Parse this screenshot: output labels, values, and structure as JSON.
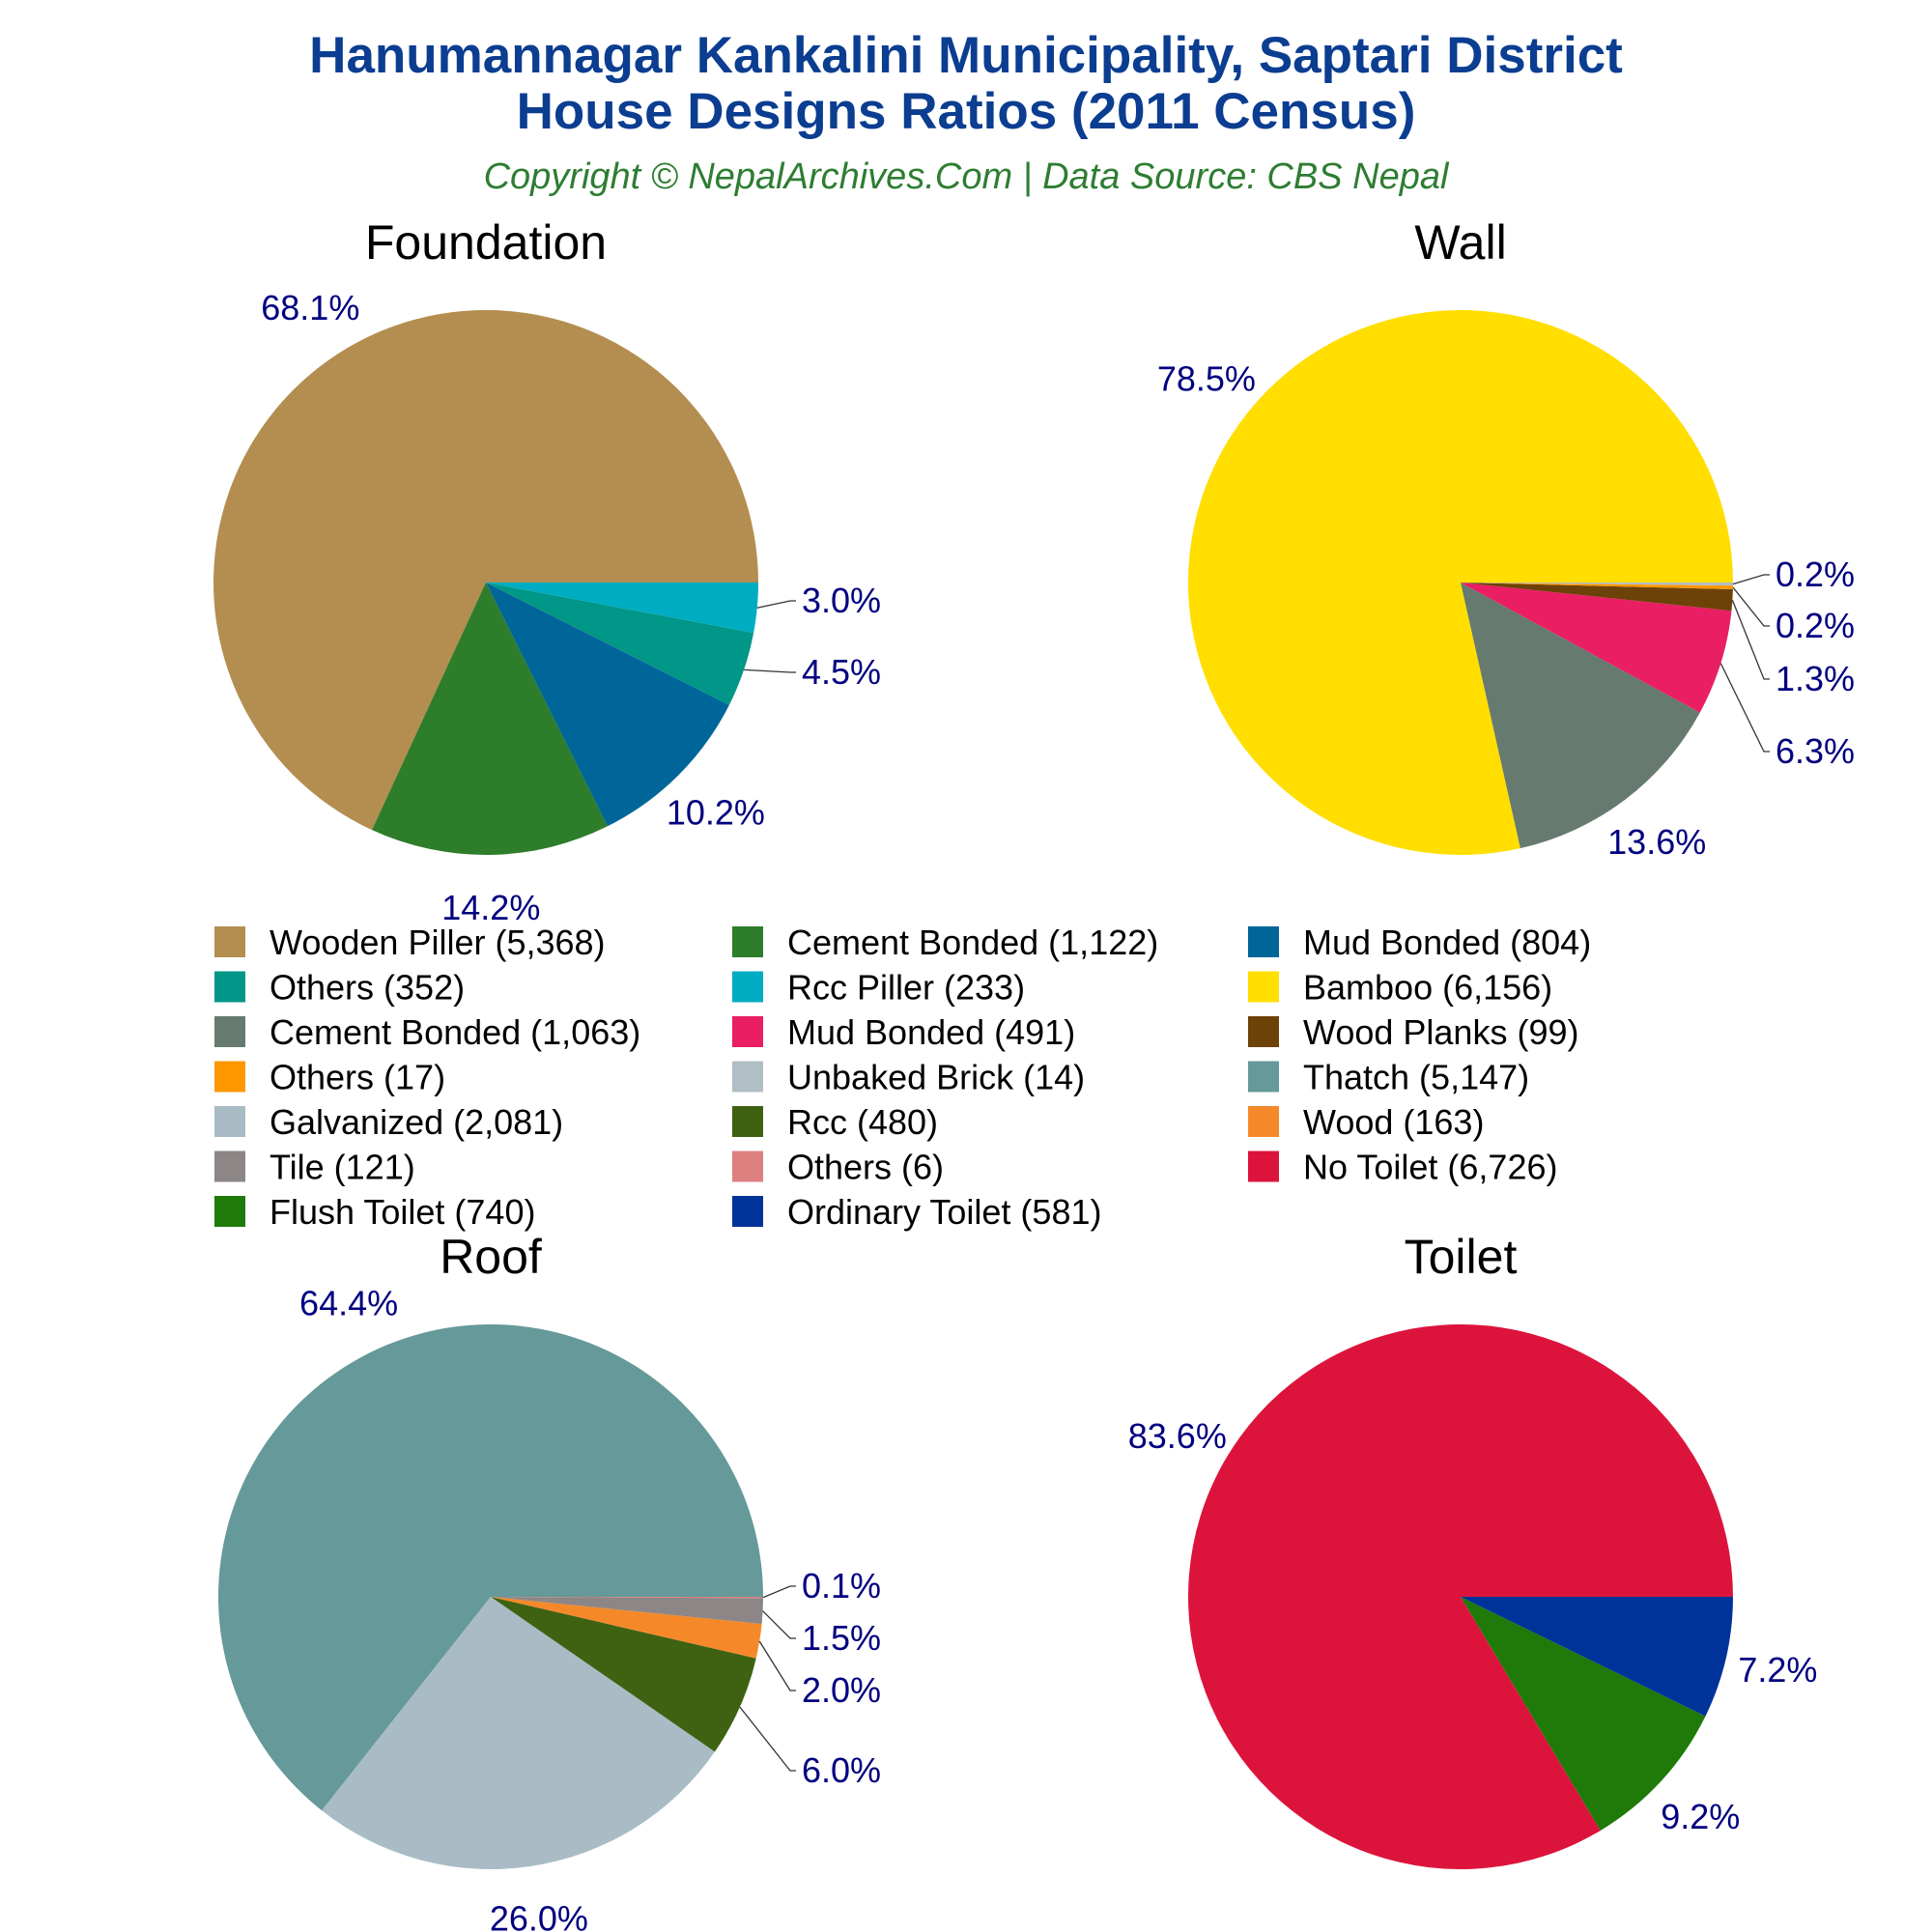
{
  "header": {
    "title_line1": "Hanumannagar Kankalini Municipality, Saptari District",
    "title_line2": "House Designs Ratios (2011 Census)",
    "subtitle": "Copyright © NepalArchives.Com | Data Source: CBS Nepal"
  },
  "chart_data": [
    {
      "type": "pie",
      "title": "Foundation",
      "slices": [
        {
          "label": "Wooden Piller (5,368)",
          "value": 5368,
          "pct": "68.1%",
          "color": "#b38e50"
        },
        {
          "label": "Cement Bonded (1,122)",
          "value": 1122,
          "pct": "14.2%",
          "color": "#2e7d2a"
        },
        {
          "label": "Mud Bonded (804)",
          "value": 804,
          "pct": "10.2%",
          "color": "#006699"
        },
        {
          "label": "Others (352)",
          "value": 352,
          "pct": "4.5%",
          "color": "#009688"
        },
        {
          "label": "Rcc Piller (233)",
          "value": 233,
          "pct": "3.0%",
          "color": "#00acc1"
        }
      ]
    },
    {
      "type": "pie",
      "title": "Wall",
      "slices": [
        {
          "label": "Bamboo (6,156)",
          "value": 6156,
          "pct": "78.5%",
          "color": "#ffde00"
        },
        {
          "label": "Cement Bonded (1,063)",
          "value": 1063,
          "pct": "13.6%",
          "color": "#667a70"
        },
        {
          "label": "Mud Bonded (491)",
          "value": 491,
          "pct": "6.3%",
          "color": "#e91e63"
        },
        {
          "label": "Wood Planks (99)",
          "value": 99,
          "pct": "1.3%",
          "color": "#6d4208"
        },
        {
          "label": "Others (17)",
          "value": 17,
          "pct": "0.2%",
          "color": "#ff9800"
        },
        {
          "label": "Unbaked Brick (14)",
          "value": 14,
          "pct": "0.2%",
          "color": "#b0bec5"
        }
      ]
    },
    {
      "type": "pie",
      "title": "Roof",
      "slices": [
        {
          "label": "Thatch (5,147)",
          "value": 5147,
          "pct": "64.4%",
          "color": "#669999"
        },
        {
          "label": "Galvanized (2,081)",
          "value": 2081,
          "pct": "26.0%",
          "color": "#a9bcc5"
        },
        {
          "label": "Rcc (480)",
          "value": 480,
          "pct": "6.0%",
          "color": "#3f6212"
        },
        {
          "label": "Wood (163)",
          "value": 163,
          "pct": "2.0%",
          "color": "#f5892a"
        },
        {
          "label": "Tile (121)",
          "value": 121,
          "pct": "1.5%",
          "color": "#8c8686"
        },
        {
          "label": "Others (6)",
          "value": 6,
          "pct": "0.1%",
          "color": "#dd8080"
        }
      ]
    },
    {
      "type": "pie",
      "title": "Toilet",
      "slices": [
        {
          "label": "No Toilet (6,726)",
          "value": 6726,
          "pct": "83.6%",
          "color": "#dc143c"
        },
        {
          "label": "Flush Toilet (740)",
          "value": 740,
          "pct": "9.2%",
          "color": "#1f7a0a"
        },
        {
          "label": "Ordinary Toilet (581)",
          "value": 581,
          "pct": "7.2%",
          "color": "#003399"
        }
      ]
    }
  ],
  "legend": [
    {
      "label": "Wooden Piller (5,368)",
      "color": "#b38e50"
    },
    {
      "label": "Cement Bonded (1,122)",
      "color": "#2e7d2a"
    },
    {
      "label": "Mud Bonded (804)",
      "color": "#006699"
    },
    {
      "label": "Others (352)",
      "color": "#009688"
    },
    {
      "label": "Rcc Piller (233)",
      "color": "#00acc1"
    },
    {
      "label": "Bamboo (6,156)",
      "color": "#ffde00"
    },
    {
      "label": "Cement Bonded (1,063)",
      "color": "#667a70"
    },
    {
      "label": "Mud Bonded (491)",
      "color": "#e91e63"
    },
    {
      "label": "Wood Planks (99)",
      "color": "#6d4208"
    },
    {
      "label": "Others (17)",
      "color": "#ff9800"
    },
    {
      "label": "Unbaked Brick (14)",
      "color": "#b0bec5"
    },
    {
      "label": "Thatch (5,147)",
      "color": "#669999"
    },
    {
      "label": "Galvanized (2,081)",
      "color": "#a9bcc5"
    },
    {
      "label": "Rcc (480)",
      "color": "#3f6212"
    },
    {
      "label": "Wood (163)",
      "color": "#f5892a"
    },
    {
      "label": "Tile (121)",
      "color": "#8c8686"
    },
    {
      "label": "Others (6)",
      "color": "#dd8080"
    },
    {
      "label": "No Toilet (6,726)",
      "color": "#dc143c"
    },
    {
      "label": "Flush Toilet (740)",
      "color": "#1f7a0a"
    },
    {
      "label": "Ordinary Toilet (581)",
      "color": "#003399"
    }
  ]
}
